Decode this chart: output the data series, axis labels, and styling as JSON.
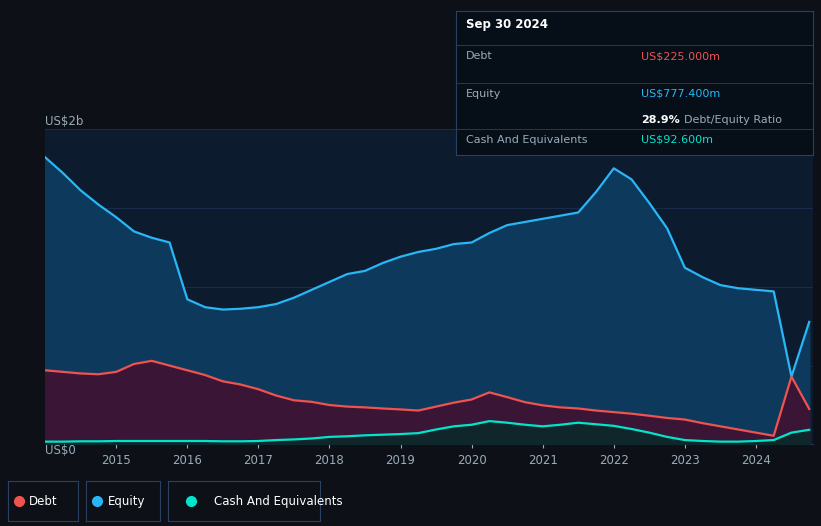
{
  "bg_color": "#0d1117",
  "plot_bg_color": "#0d1b2e",
  "grid_color": "#1e3050",
  "ylabel": "US$2b",
  "y0label": "US$0",
  "equity_color": "#29b6f6",
  "equity_fill": "#0d3a5c",
  "debt_color": "#ef5350",
  "debt_fill": "#3a1535",
  "cash_color": "#00e5cc",
  "cash_fill": "#0a2a2a",
  "tooltip_date": "Sep 30 2024",
  "tooltip_debt_label": "Debt",
  "tooltip_debt_value": "US$225.000m",
  "tooltip_equity_label": "Equity",
  "tooltip_equity_value": "US$777.400m",
  "tooltip_ratio_bold": "28.9%",
  "tooltip_ratio_text": "Debt/Equity Ratio",
  "tooltip_cash_label": "Cash And Equivalents",
  "tooltip_cash_value": "US$92.600m",
  "years": [
    2014.0,
    2014.25,
    2014.5,
    2014.75,
    2015.0,
    2015.25,
    2015.5,
    2015.75,
    2016.0,
    2016.25,
    2016.5,
    2016.75,
    2017.0,
    2017.25,
    2017.5,
    2017.75,
    2018.0,
    2018.25,
    2018.5,
    2018.75,
    2019.0,
    2019.25,
    2019.5,
    2019.75,
    2020.0,
    2020.25,
    2020.5,
    2020.75,
    2021.0,
    2021.25,
    2021.5,
    2021.75,
    2022.0,
    2022.25,
    2022.5,
    2022.75,
    2023.0,
    2023.25,
    2023.5,
    2023.75,
    2024.0,
    2024.25,
    2024.5,
    2024.75
  ],
  "equity": [
    1820,
    1720,
    1610,
    1520,
    1440,
    1350,
    1310,
    1280,
    920,
    870,
    855,
    860,
    870,
    890,
    930,
    980,
    1030,
    1080,
    1100,
    1150,
    1190,
    1220,
    1240,
    1270,
    1280,
    1340,
    1390,
    1410,
    1430,
    1450,
    1470,
    1600,
    1750,
    1680,
    1530,
    1370,
    1120,
    1060,
    1010,
    990,
    980,
    970,
    430,
    777
  ],
  "debt": [
    470,
    460,
    450,
    445,
    460,
    510,
    530,
    500,
    470,
    440,
    400,
    380,
    350,
    310,
    280,
    270,
    250,
    240,
    235,
    228,
    222,
    215,
    240,
    265,
    285,
    330,
    300,
    268,
    248,
    235,
    228,
    215,
    205,
    195,
    182,
    168,
    158,
    135,
    115,
    95,
    75,
    55,
    430,
    225
  ],
  "cash": [
    18,
    18,
    20,
    20,
    22,
    22,
    22,
    22,
    22,
    22,
    20,
    20,
    22,
    28,
    32,
    38,
    48,
    52,
    58,
    62,
    66,
    72,
    95,
    115,
    125,
    148,
    138,
    125,
    115,
    125,
    138,
    128,
    118,
    98,
    75,
    48,
    28,
    22,
    18,
    18,
    22,
    28,
    75,
    93
  ],
  "ylim": [
    0,
    2000
  ],
  "xticks": [
    2015,
    2016,
    2017,
    2018,
    2019,
    2020,
    2021,
    2022,
    2023,
    2024
  ],
  "legend_items": [
    {
      "label": "Debt",
      "color": "#ef5350"
    },
    {
      "label": "Equity",
      "color": "#29b6f6"
    },
    {
      "label": "Cash And Equivalents",
      "color": "#00e5cc"
    }
  ]
}
